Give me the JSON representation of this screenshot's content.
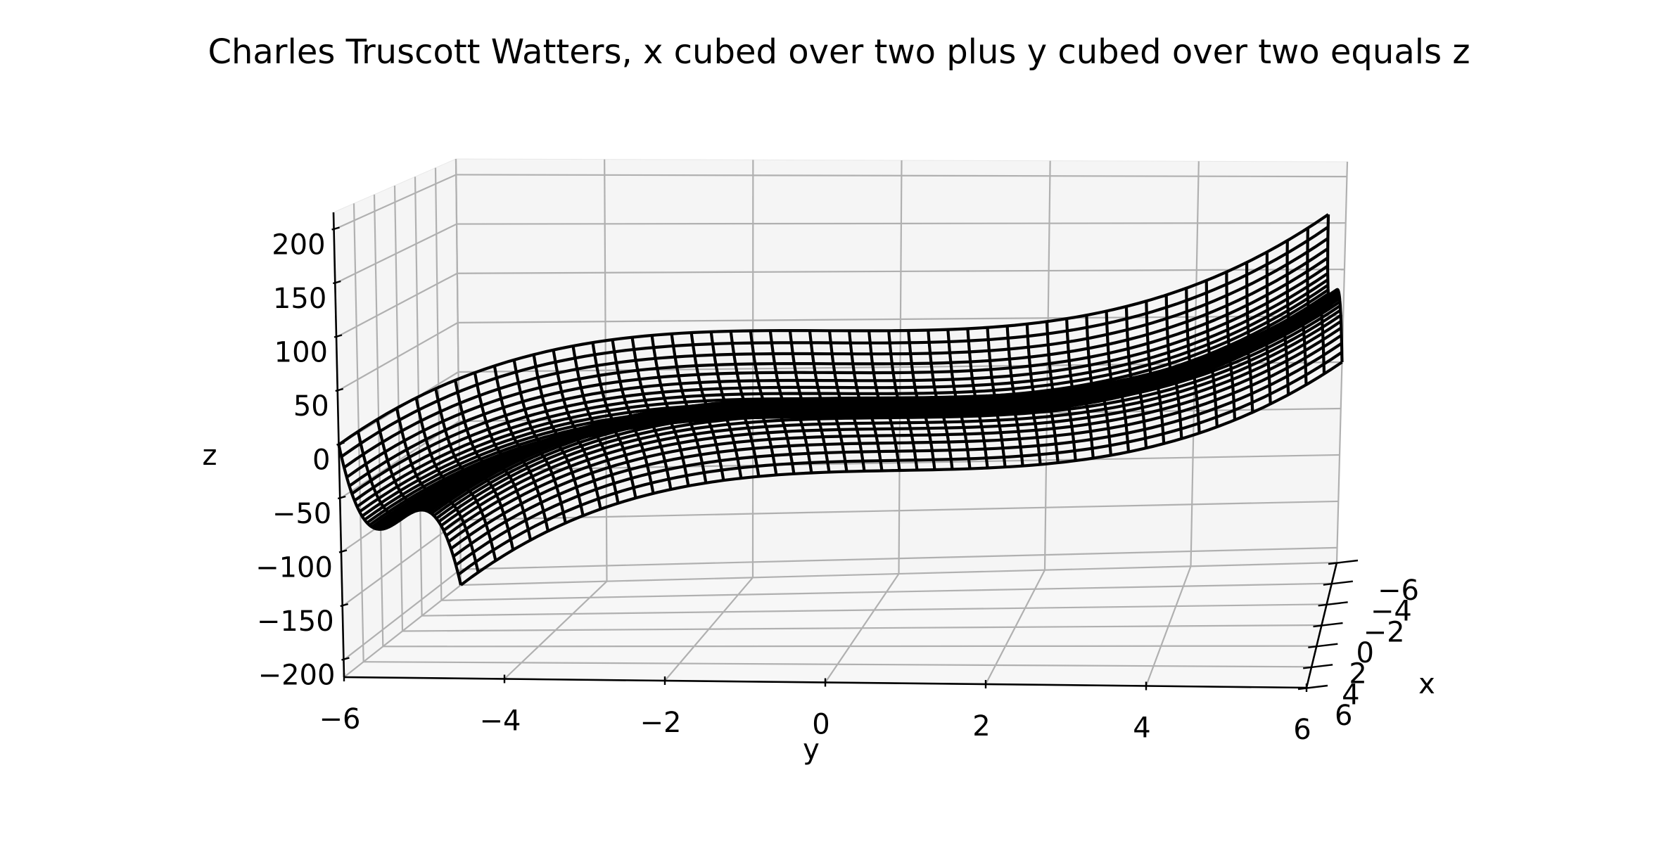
{
  "chart_data": {
    "type": "surface3d-wireframe",
    "title": "Charles Truscott Watters, x cubed over two plus y cubed over two equals z",
    "function": "z = x^3/2 + y^3/2",
    "x": {
      "label": "x",
      "range": [
        -6,
        6
      ],
      "ticks": [
        -6,
        -4,
        -2,
        0,
        2,
        4,
        6
      ],
      "tick_labels": [
        "−6",
        "−4",
        "−2",
        "0",
        "2",
        "4",
        "6"
      ]
    },
    "y": {
      "label": "y",
      "range": [
        -6,
        6
      ],
      "ticks": [
        -6,
        -4,
        -2,
        0,
        2,
        4,
        6
      ],
      "tick_labels": [
        "−6",
        "−4",
        "−2",
        "0",
        "2",
        "4",
        "6"
      ]
    },
    "z": {
      "label": "z",
      "range": [
        -216,
        216
      ],
      "ticks": [
        -200,
        -150,
        -100,
        -50,
        0,
        50,
        100,
        150,
        200
      ],
      "tick_labels": [
        "−200",
        "−150",
        "−100",
        "−50",
        "0",
        "50",
        "100",
        "150",
        "200"
      ]
    },
    "grid": true,
    "line_color": "#000000",
    "pane_color": "#f5f5f5",
    "grid_color": "#b0b0b0"
  }
}
